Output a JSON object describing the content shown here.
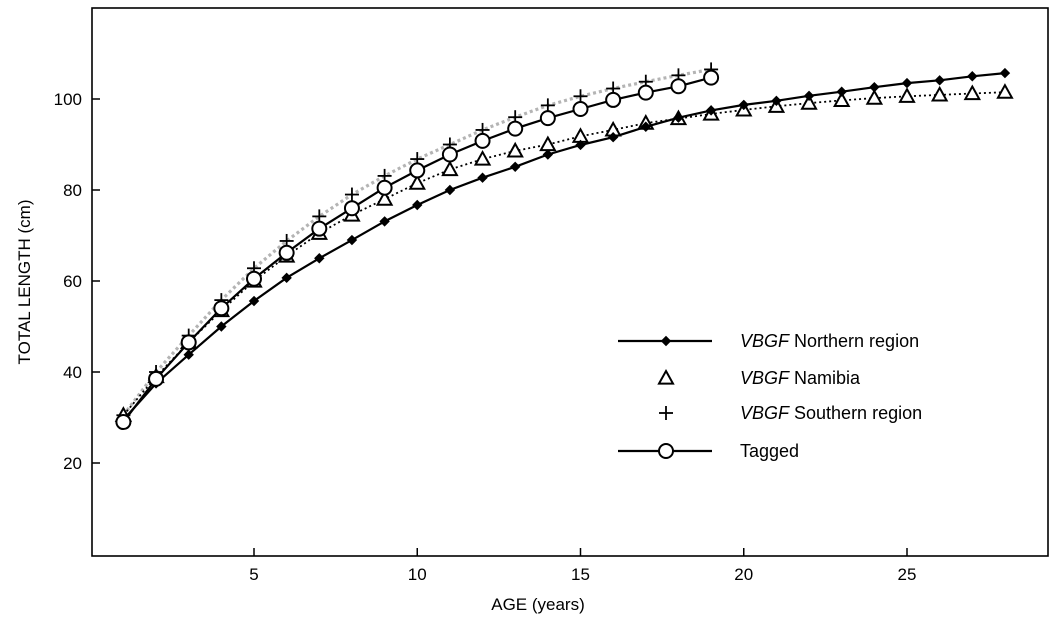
{
  "chart_data": {
    "type": "line",
    "title": "",
    "xlabel": "AGE (years)",
    "ylabel": "TOTAL LENGTH (cm)",
    "xlim": [
      0,
      30
    ],
    "ylim": [
      0,
      120
    ],
    "xticks": [
      5,
      10,
      15,
      20,
      25
    ],
    "yticks": [
      20,
      40,
      60,
      80,
      100
    ],
    "grid": false,
    "legend_position": "center-right",
    "series": [
      {
        "name": "VBGF Northern region",
        "legend_prefix": "VBGF",
        "legend_suffix": " Northern region",
        "marker": "filled-diamond",
        "line": "solid",
        "color": "#000000",
        "x": [
          1,
          2,
          3,
          4,
          5,
          6,
          7,
          8,
          9,
          10,
          11,
          12,
          13,
          14,
          15,
          16,
          17,
          18,
          19,
          20,
          21,
          22,
          23,
          24,
          25,
          26,
          27,
          28
        ],
        "y": [
          29.5,
          37.5,
          43.8,
          50.0,
          55.6,
          60.7,
          65.0,
          69.0,
          73.1,
          76.7,
          80.0,
          82.7,
          85.1,
          87.8,
          89.9,
          91.6,
          93.9,
          95.9,
          97.5,
          98.7,
          99.6,
          100.7,
          101.6,
          102.6,
          103.5,
          104.1,
          105.0,
          105.7
        ]
      },
      {
        "name": "VBGF Namibia",
        "legend_prefix": "VBGF",
        "legend_suffix": " Namibia",
        "marker": "open-triangle",
        "line": "dotted",
        "color": "#000000",
        "x": [
          1,
          2,
          3,
          4,
          5,
          6,
          7,
          8,
          9,
          10,
          11,
          12,
          13,
          14,
          15,
          16,
          17,
          18,
          19,
          20,
          21,
          22,
          23,
          24,
          25,
          26,
          27,
          28
        ],
        "y": [
          30.5,
          39.0,
          46.5,
          53.5,
          60.0,
          65.5,
          70.5,
          74.5,
          78.0,
          81.5,
          84.5,
          86.8,
          88.6,
          90.0,
          91.8,
          93.2,
          94.7,
          95.7,
          96.7,
          97.6,
          98.4,
          99.1,
          99.7,
          100.2,
          100.6,
          100.9,
          101.2,
          101.5
        ]
      },
      {
        "name": "VBGF Southern region",
        "legend_prefix": "VBGF",
        "legend_suffix": " Southern region",
        "marker": "plus",
        "line": "dotted-gray",
        "color": "#b4b4b4",
        "x": [
          1,
          2,
          3,
          4,
          5,
          6,
          7,
          8,
          9,
          10,
          11,
          12,
          13,
          14,
          15,
          16,
          17,
          18,
          19
        ],
        "y": [
          30.5,
          40.0,
          48.0,
          55.8,
          62.8,
          68.8,
          74.2,
          79.0,
          83.1,
          86.8,
          90.0,
          93.2,
          96.0,
          98.6,
          100.6,
          102.3,
          103.8,
          105.2,
          106.5
        ]
      },
      {
        "name": "Tagged",
        "legend_prefix": "",
        "legend_suffix": "Tagged",
        "marker": "open-circle",
        "line": "solid",
        "color": "#000000",
        "x": [
          1,
          2,
          3,
          4,
          5,
          6,
          7,
          8,
          9,
          10,
          11,
          12,
          13,
          14,
          15,
          16,
          17,
          18,
          19
        ],
        "y": [
          29.0,
          38.5,
          46.5,
          54.0,
          60.5,
          66.2,
          71.5,
          76.0,
          80.5,
          84.3,
          87.8,
          90.8,
          93.5,
          95.8,
          97.8,
          99.8,
          101.4,
          102.8,
          104.7
        ]
      }
    ]
  }
}
